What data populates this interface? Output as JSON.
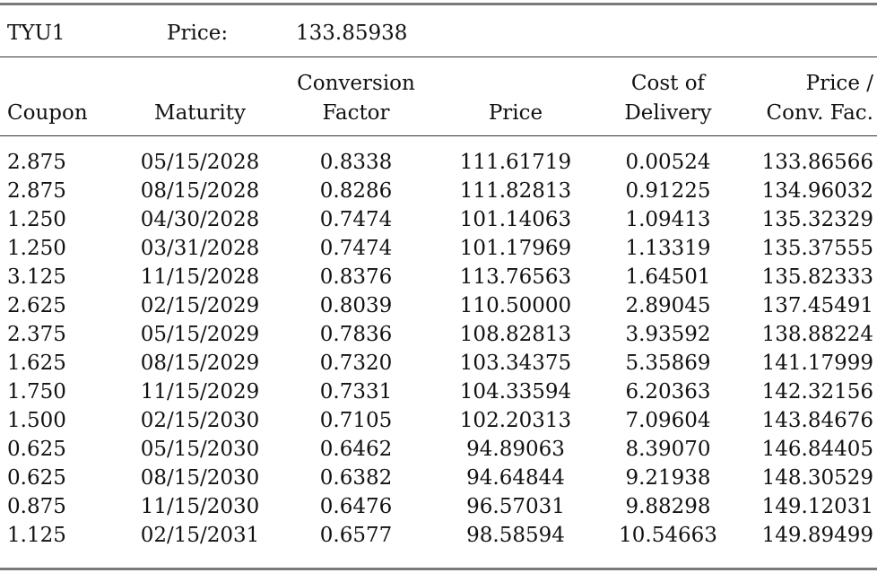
{
  "summary": {
    "contract": "TYU1",
    "price_label": "Price:",
    "price_value": "133.85938"
  },
  "headers": [
    {
      "line1": "",
      "line2": "Coupon"
    },
    {
      "line1": "",
      "line2": "Maturity"
    },
    {
      "line1": "Conversion",
      "line2": "Factor"
    },
    {
      "line1": "",
      "line2": "Price"
    },
    {
      "line1": "Cost of",
      "line2": "Delivery"
    },
    {
      "line1": "Price /",
      "line2": "Conv. Fac."
    }
  ],
  "rows": [
    [
      "2.875",
      "05/15/2028",
      "0.8338",
      "111.61719",
      "0.00524",
      "133.86566"
    ],
    [
      "2.875",
      "08/15/2028",
      "0.8286",
      "111.82813",
      "0.91225",
      "134.96032"
    ],
    [
      "1.250",
      "04/30/2028",
      "0.7474",
      "101.14063",
      "1.09413",
      "135.32329"
    ],
    [
      "1.250",
      "03/31/2028",
      "0.7474",
      "101.17969",
      "1.13319",
      "135.37555"
    ],
    [
      "3.125",
      "11/15/2028",
      "0.8376",
      "113.76563",
      "1.64501",
      "135.82333"
    ],
    [
      "2.625",
      "02/15/2029",
      "0.8039",
      "110.50000",
      "2.89045",
      "137.45491"
    ],
    [
      "2.375",
      "05/15/2029",
      "0.7836",
      "108.82813",
      "3.93592",
      "138.88224"
    ],
    [
      "1.625",
      "08/15/2029",
      "0.7320",
      "103.34375",
      "5.35869",
      "141.17999"
    ],
    [
      "1.750",
      "11/15/2029",
      "0.7331",
      "104.33594",
      "6.20363",
      "142.32156"
    ],
    [
      "1.500",
      "02/15/2030",
      "0.7105",
      "102.20313",
      "7.09604",
      "143.84676"
    ],
    [
      "0.625",
      "05/15/2030",
      "0.6462",
      "94.89063",
      "8.39070",
      "146.84405"
    ],
    [
      "0.625",
      "08/15/2030",
      "0.6382",
      "94.64844",
      "9.21938",
      "148.30529"
    ],
    [
      "0.875",
      "11/15/2030",
      "0.6476",
      "96.57031",
      "9.88298",
      "149.12031"
    ],
    [
      "1.125",
      "02/15/2031",
      "0.6577",
      "98.58594",
      "10.54663",
      "149.89499"
    ]
  ]
}
